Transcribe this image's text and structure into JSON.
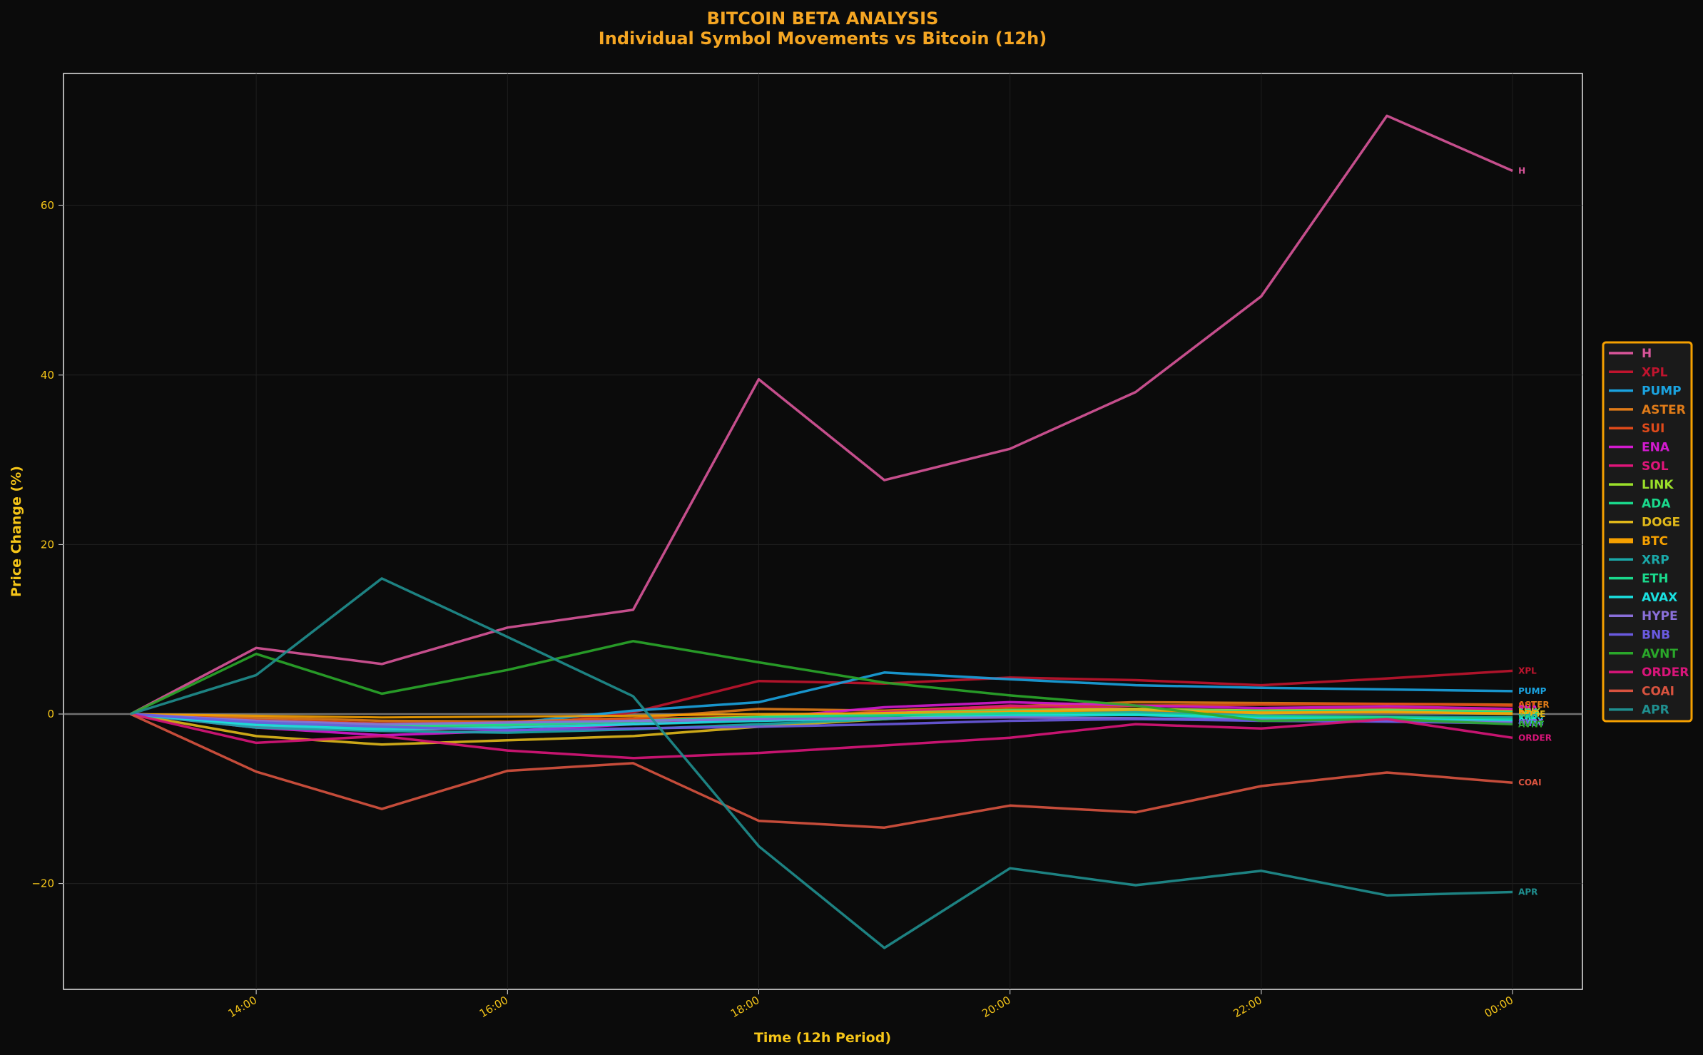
{
  "chart_data": {
    "type": "line",
    "title": "BITCOIN BETA ANALYSIS",
    "subtitle": "Individual Symbol Movements vs Bitcoin (12h)",
    "xlabel": "Time (12h Period)",
    "ylabel": "Price Change (%)",
    "x": [
      "13:00",
      "14:00",
      "15:00",
      "16:00",
      "17:00",
      "18:00",
      "19:00",
      "20:00",
      "21:00",
      "22:00",
      "23:00",
      "00:00"
    ],
    "x_tick_labels": [
      "14:00",
      "16:00",
      "18:00",
      "20:00",
      "22:00",
      "00:00"
    ],
    "y_ticks": [
      -20,
      0,
      20,
      40,
      60
    ],
    "ylim": [
      -32,
      76
    ],
    "grid": true,
    "zero_line": true,
    "legend_position": "right",
    "series": [
      {
        "name": "H",
        "color": "#d9559a",
        "values": [
          0,
          7.8,
          5.9,
          10.2,
          12.3,
          39.5,
          27.6,
          31.3,
          38.0,
          49.3,
          70.6,
          64.1
        ],
        "end_label": "H"
      },
      {
        "name": "XPL",
        "color": "#c0142e",
        "values": [
          0,
          -0.6,
          -1.2,
          -1.6,
          0.2,
          3.9,
          3.6,
          4.3,
          4.0,
          3.4,
          4.2,
          5.1
        ],
        "end_label": "XPL"
      },
      {
        "name": "PUMP",
        "color": "#1aa3e0",
        "values": [
          0,
          -0.6,
          -1.4,
          -1.1,
          0.4,
          1.4,
          4.9,
          4.1,
          3.4,
          3.1,
          2.9,
          2.7
        ],
        "end_label": "PUMP"
      },
      {
        "name": "ASTER",
        "color": "#e07b18",
        "values": [
          0,
          -0.4,
          -0.8,
          -0.9,
          -0.5,
          0.6,
          0.4,
          0.9,
          1.4,
          1.3,
          1.2,
          1.1
        ],
        "end_label": "ASTER"
      },
      {
        "name": "SUI",
        "color": "#e04a1a",
        "values": [
          0,
          -0.7,
          -1.1,
          -1.0,
          -0.6,
          -0.3,
          0.2,
          0.8,
          1.0,
          1.1,
          1.2,
          1.0
        ],
        "end_label": "SUI"
      },
      {
        "name": "ENA",
        "color": "#d31ad0",
        "values": [
          0,
          -1.6,
          -2.5,
          -2.0,
          -1.2,
          -0.5,
          0.8,
          1.4,
          1.0,
          0.7,
          0.9,
          0.6
        ],
        "end_label": "ENA"
      },
      {
        "name": "SOL",
        "color": "#e0157a",
        "values": [
          0,
          -1.4,
          -2.0,
          -1.5,
          -0.9,
          -0.5,
          0.2,
          1.0,
          0.6,
          0.4,
          0.7,
          0.4
        ],
        "end_label": "SOL"
      },
      {
        "name": "LINK",
        "color": "#9be02a",
        "values": [
          0,
          -1.0,
          -1.4,
          -1.2,
          -0.8,
          -0.3,
          0.1,
          0.5,
          0.6,
          0.4,
          0.5,
          0.3
        ],
        "end_label": "LINK"
      },
      {
        "name": "ADA",
        "color": "#1ad98c",
        "values": [
          0,
          -1.2,
          -1.6,
          -1.3,
          -0.9,
          -0.4,
          0.0,
          0.4,
          0.5,
          0.3,
          0.4,
          0.2
        ],
        "end_label": "ADA"
      },
      {
        "name": "DOGE",
        "color": "#e0b81a",
        "values": [
          0,
          -2.6,
          -3.6,
          -3.1,
          -2.6,
          -1.5,
          -0.6,
          0.3,
          0.6,
          0.1,
          0.3,
          0.0
        ],
        "end_label": "DOGE"
      },
      {
        "name": "BTC",
        "color": "#f5a000",
        "values": [
          0,
          -0.2,
          -0.4,
          -0.3,
          -0.2,
          0.0,
          0.1,
          0.3,
          0.3,
          0.2,
          0.2,
          0.1
        ],
        "end_label": "BTC"
      },
      {
        "name": "XRP",
        "color": "#1aa8a8",
        "values": [
          0,
          -1.6,
          -2.0,
          -2.2,
          -1.8,
          -1.2,
          -0.6,
          0.0,
          0.2,
          -0.2,
          -0.3,
          -0.4
        ],
        "end_label": "XRP"
      },
      {
        "name": "ETH",
        "color": "#1ad98c",
        "values": [
          0,
          -0.9,
          -1.3,
          -1.1,
          -0.8,
          -0.4,
          -0.2,
          0.1,
          0.0,
          -0.3,
          -0.4,
          -0.6
        ],
        "end_label": "ETH"
      },
      {
        "name": "AVAX",
        "color": "#1ae0e0",
        "values": [
          0,
          -1.3,
          -1.8,
          -1.6,
          -1.2,
          -0.8,
          -0.5,
          -0.2,
          -0.1,
          -0.5,
          -0.6,
          -0.8
        ],
        "end_label": "AVAX"
      },
      {
        "name": "HYPE",
        "color": "#8a6fd9",
        "values": [
          0,
          -0.8,
          -1.2,
          -1.0,
          -0.8,
          -0.6,
          -0.5,
          -0.4,
          -0.5,
          -0.7,
          -0.8,
          -1.0
        ],
        "end_label": "HYPE"
      },
      {
        "name": "BNB",
        "color": "#6a5ae0",
        "values": [
          0,
          -1.0,
          -1.5,
          -1.9,
          -1.7,
          -1.5,
          -1.2,
          -0.8,
          -0.6,
          -0.8,
          -0.9,
          -1.1
        ],
        "end_label": "BNB"
      },
      {
        "name": "AVNT",
        "color": "#2aa82a",
        "values": [
          0,
          7.1,
          2.4,
          5.2,
          8.6,
          6.1,
          3.7,
          2.2,
          1.0,
          -0.8,
          -0.6,
          -1.2
        ],
        "end_label": "AVNT"
      },
      {
        "name": "ORDER",
        "color": "#d9157a",
        "values": [
          0,
          -3.4,
          -2.6,
          -4.3,
          -5.2,
          -4.6,
          -3.7,
          -2.8,
          -1.2,
          -1.7,
          -0.6,
          -2.8
        ],
        "end_label": "ORDER"
      },
      {
        "name": "COAI",
        "color": "#d9533f",
        "values": [
          0,
          -6.8,
          -11.2,
          -6.7,
          -5.8,
          -12.6,
          -13.4,
          -10.8,
          -11.6,
          -8.5,
          -6.9,
          -8.1
        ],
        "end_label": "COAI"
      },
      {
        "name": "APR",
        "color": "#1f8f8f",
        "values": [
          0,
          4.6,
          16.0,
          9.1,
          2.1,
          -15.6,
          -27.6,
          -18.2,
          -20.2,
          -18.5,
          -21.4,
          -21.0
        ],
        "end_label": "APR"
      }
    ]
  }
}
